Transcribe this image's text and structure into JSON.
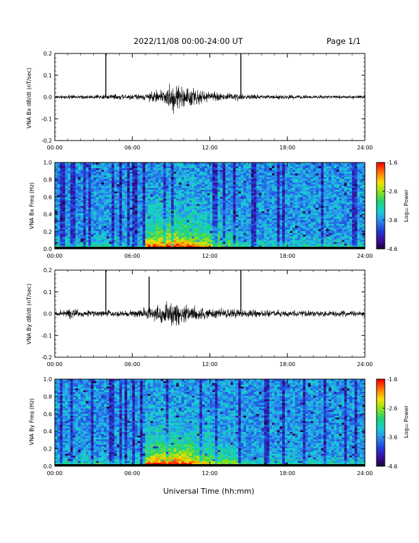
{
  "header": {
    "title": "2022/11/08  00:00-24:00 UT",
    "page_label": "Page 1/1"
  },
  "colors": {
    "trace": "#000000",
    "colormap": [
      "#1a0033",
      "#3b0f9e",
      "#1f3fd8",
      "#2a8cf0",
      "#18d1d1",
      "#1fd27a",
      "#8ee21a",
      "#f5e000",
      "#ff7a00",
      "#ff0000"
    ]
  },
  "chart_data": [
    {
      "type": "line",
      "ylabel": "VNA Bx dB/dt (nT/sec)",
      "xlim": [
        0,
        24
      ],
      "ylim": [
        -0.2,
        0.2
      ],
      "yticks": [
        "-0.2",
        "-0.1",
        "0.0",
        "0.1",
        "0.2"
      ],
      "xticks": [
        "00:00",
        "06:00",
        "12:00",
        "18:00",
        "24:00"
      ],
      "spikes": [
        {
          "x": 3.95,
          "y": 0.2
        },
        {
          "x": 14.4,
          "y": 0.2
        }
      ],
      "envelope": [
        {
          "x": 0,
          "y": 0.01
        },
        {
          "x": 2,
          "y": 0.012
        },
        {
          "x": 4,
          "y": 0.015
        },
        {
          "x": 6,
          "y": 0.018
        },
        {
          "x": 7,
          "y": 0.025
        },
        {
          "x": 8,
          "y": 0.04
        },
        {
          "x": 8.8,
          "y": 0.07
        },
        {
          "x": 9.2,
          "y": 0.1
        },
        {
          "x": 9.6,
          "y": 0.085
        },
        {
          "x": 10.5,
          "y": 0.06
        },
        {
          "x": 11.5,
          "y": 0.04
        },
        {
          "x": 12.5,
          "y": 0.03
        },
        {
          "x": 13.5,
          "y": 0.025
        },
        {
          "x": 14.5,
          "y": 0.02
        },
        {
          "x": 16,
          "y": 0.014
        },
        {
          "x": 20,
          "y": 0.012
        },
        {
          "x": 24,
          "y": 0.012
        }
      ]
    },
    {
      "type": "heatmap",
      "ylabel": "VNA Bx Freq (Hz)",
      "colorbar_label": "Log₁₀ Power",
      "colorbar_ticks": [
        "-1.6",
        "-2.6",
        "-3.6",
        "-4.6"
      ],
      "clim": [
        -4.6,
        -1.6
      ],
      "xlim": [
        0,
        24
      ],
      "ylim": [
        0,
        1.0
      ],
      "yticks": [
        "0.0",
        "0.2",
        "0.4",
        "0.6",
        "0.8",
        "1.0"
      ],
      "xticks": [
        "00:00",
        "06:00",
        "12:00",
        "18:00",
        "24:00"
      ],
      "activity_window": [
        7.0,
        14.3
      ],
      "peak_time": 9.0
    },
    {
      "type": "line",
      "ylabel": "VNA By dB/dt (nT/sec)",
      "xlim": [
        0,
        24
      ],
      "ylim": [
        -0.2,
        0.2
      ],
      "yticks": [
        "-0.2",
        "-0.1",
        "0.0",
        "0.1",
        "0.2"
      ],
      "xticks": [
        "00:00",
        "06:00",
        "12:00",
        "18:00",
        "24:00"
      ],
      "spikes": [
        {
          "x": 3.95,
          "y": 0.2
        },
        {
          "x": 7.3,
          "y": 0.17
        },
        {
          "x": 14.4,
          "y": 0.2
        }
      ],
      "envelope": [
        {
          "x": 0,
          "y": 0.012
        },
        {
          "x": 1.4,
          "y": 0.045
        },
        {
          "x": 2,
          "y": 0.02
        },
        {
          "x": 4,
          "y": 0.02
        },
        {
          "x": 6,
          "y": 0.025
        },
        {
          "x": 7,
          "y": 0.04
        },
        {
          "x": 8,
          "y": 0.06
        },
        {
          "x": 9,
          "y": 0.08
        },
        {
          "x": 9.5,
          "y": 0.075
        },
        {
          "x": 10.5,
          "y": 0.05
        },
        {
          "x": 12,
          "y": 0.035
        },
        {
          "x": 13.5,
          "y": 0.03
        },
        {
          "x": 15,
          "y": 0.025
        },
        {
          "x": 18,
          "y": 0.02
        },
        {
          "x": 21,
          "y": 0.018
        },
        {
          "x": 24,
          "y": 0.018
        }
      ]
    },
    {
      "type": "heatmap",
      "ylabel": "VNA By Freq (Hz)",
      "colorbar_label": "Log₁₀ Power",
      "colorbar_ticks": [
        "-1.6",
        "-2.6",
        "-3.6",
        "-4.6"
      ],
      "clim": [
        -4.6,
        -1.6
      ],
      "xlim": [
        0,
        24
      ],
      "ylim": [
        0,
        1.0
      ],
      "yticks": [
        "0.0",
        "0.2",
        "0.4",
        "0.6",
        "0.8",
        "1.0"
      ],
      "xticks": [
        "00:00",
        "06:00",
        "12:00",
        "18:00",
        "24:00"
      ],
      "activity_window": [
        7.0,
        14.3
      ],
      "peak_time": 9.0
    }
  ],
  "footer": {
    "xlabel": "Universal Time (hh:mm)"
  }
}
